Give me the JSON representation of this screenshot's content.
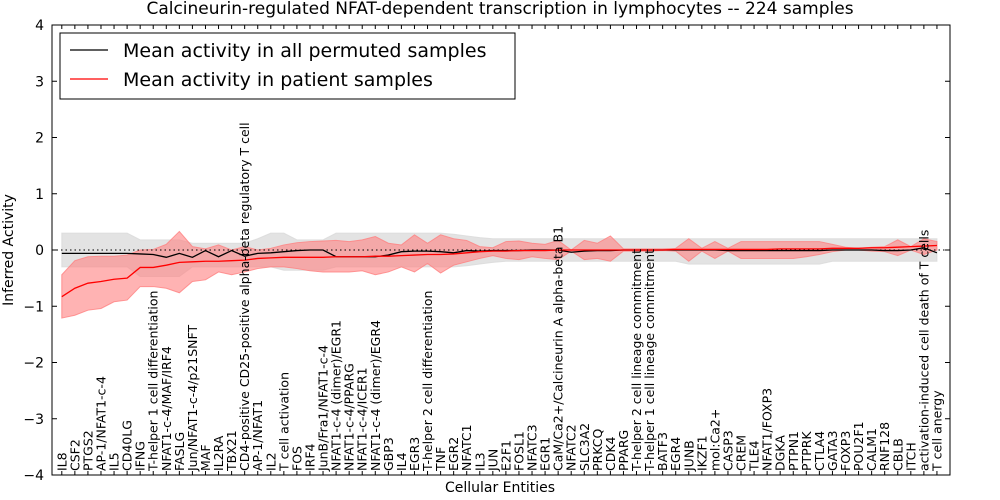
{
  "chart_data": {
    "type": "line",
    "title": "Calcineurin-regulated NFAT-dependent transcription in lymphocytes -- 224 samples",
    "xlabel": "Cellular Entities",
    "ylabel": "Inferred Activity",
    "ylim": [
      -4,
      4
    ],
    "xlim": [
      -0.75,
      68
    ],
    "yticks": [
      -4,
      -3,
      -2,
      -1,
      0,
      1,
      2,
      3,
      4
    ],
    "legend_position": "top-left",
    "categories": [
      "IL8",
      "CSF2",
      "PTGS2",
      "AP-1/NFAT1-c-4",
      "IL5",
      "CD40LG",
      "IFNG",
      "T-helper 1 cell differentiation",
      "NFAT1-c-4/MAF/IRF4",
      "FASLG",
      "Jun/NFAT1-c-4/p21SNFT",
      "MAF",
      "IL2RA",
      "TBX21",
      "CD4-positive CD25-positive alpha-beta regulatory T cell",
      "AP-1/NFAT1",
      "IL2",
      "T cell activation",
      "FOS",
      "IRF4",
      "JunB/Fra1/NFAT1-c-4",
      "NFAT1-c-4 (dimer)/EGR1",
      "NFAT1-c-4/PPARG",
      "NFAT1-c-4/ICER1",
      "NFAT1-c-4 (dimer)/EGR4",
      "GBP3",
      "IL4",
      "EGR3",
      "T-helper 2 cell differentiation",
      "TNF",
      "EGR2",
      "NFATC1",
      "IL3",
      "JUN",
      "E2F1",
      "FOSL1",
      "NFATC3",
      "EGR1",
      "CaM/Ca2+/Calcineurin A alpha-beta B1",
      "NFATC2",
      "SLC3A2",
      "PRKCQ",
      "CDK4",
      "PPARG",
      "T-helper 2 cell lineage commitment",
      "T-helper 1 cell lineage commitment",
      "BATF3",
      "EGR4",
      "JUNB",
      "IKZF1",
      "mol:Ca2+",
      "CASP3",
      "CREM",
      "TLE4",
      "NFAT1/FOXP3",
      "DGKA",
      "PTPN1",
      "PTPRK",
      "CTLA4",
      "GATA3",
      "FOXP3",
      "POU2F1",
      "CALM1",
      "RNF128",
      "CBLB",
      "ITCH",
      "activation-induced cell death of T cells",
      "T cell anergy"
    ],
    "series": [
      {
        "name": "Mean activity in all permuted samples",
        "color": "#000000",
        "band_color": "#d9d9d9",
        "values": [
          -0.06,
          -0.06,
          -0.06,
          -0.06,
          -0.06,
          -0.06,
          -0.07,
          -0.08,
          -0.13,
          -0.06,
          -0.13,
          -0.01,
          -0.12,
          -0.01,
          -0.11,
          -0.06,
          -0.05,
          -0.03,
          -0.01,
          0,
          0,
          -0.12,
          -0.12,
          -0.12,
          -0.12,
          -0.09,
          -0.03,
          -0.02,
          -0.02,
          -0.03,
          -0.05,
          -0.01,
          -0.02,
          -0.01,
          -0.01,
          -0.01,
          0,
          0,
          0,
          -0.04,
          -0.02,
          -0.01,
          -0.01,
          0,
          0,
          0,
          0,
          0,
          0,
          0,
          0,
          -0.01,
          -0.01,
          -0.01,
          -0.01,
          -0.01,
          -0.01,
          -0.01,
          -0.01,
          0,
          0,
          0,
          0,
          -0.01,
          -0.01,
          0,
          0.04,
          -0.05
        ],
        "upper": [
          0.3,
          0.3,
          0.3,
          0.3,
          0.3,
          0.3,
          0.18,
          0.18,
          0.18,
          0.18,
          0.12,
          0.12,
          0.12,
          0.12,
          0.12,
          0.2,
          0.3,
          0.3,
          0.18,
          0.18,
          0.18,
          0.3,
          0.3,
          0.3,
          0.3,
          0.3,
          0.3,
          0.3,
          0.3,
          0.3,
          0.28,
          0.25,
          0.22,
          0.2,
          0.2,
          0.2,
          0.2,
          0.2,
          0.2,
          0.2,
          0.2,
          0.2,
          0.2,
          0.2,
          0.2,
          0.2,
          0.2,
          0.2,
          0.2,
          0.2,
          0.2,
          0.2,
          0.2,
          0.2,
          0.2,
          0.2,
          0.2,
          0.2,
          0.2,
          0.2,
          0.2,
          0.2,
          0.2,
          0.2,
          0.2,
          0.2,
          0.2,
          0.2
        ],
        "lower": [
          -0.3,
          -0.3,
          -0.3,
          -0.3,
          -0.3,
          -0.3,
          -0.47,
          -0.47,
          -0.47,
          -0.47,
          -0.3,
          -0.3,
          -0.3,
          -0.3,
          -0.3,
          -0.3,
          -0.3,
          -0.36,
          -0.36,
          -0.36,
          -0.36,
          -0.3,
          -0.3,
          -0.3,
          -0.3,
          -0.3,
          -0.3,
          -0.3,
          -0.3,
          -0.3,
          -0.3,
          -0.28,
          -0.25,
          -0.22,
          -0.2,
          -0.2,
          -0.2,
          -0.2,
          -0.2,
          -0.2,
          -0.2,
          -0.2,
          -0.2,
          -0.2,
          -0.2,
          -0.2,
          -0.2,
          -0.2,
          -0.25,
          -0.25,
          -0.25,
          -0.25,
          -0.25,
          -0.25,
          -0.25,
          -0.25,
          -0.25,
          -0.25,
          -0.25,
          -0.2,
          -0.2,
          -0.2,
          -0.2,
          -0.2,
          -0.2,
          -0.2,
          -0.2,
          -0.2
        ]
      },
      {
        "name": "Mean activity in patient samples",
        "color": "#ff0000",
        "band_color": "#ff8080",
        "values": [
          -0.83,
          -0.68,
          -0.59,
          -0.56,
          -0.52,
          -0.5,
          -0.31,
          -0.31,
          -0.27,
          -0.22,
          -0.21,
          -0.2,
          -0.2,
          -0.19,
          -0.18,
          -0.15,
          -0.14,
          -0.13,
          -0.13,
          -0.13,
          -0.13,
          -0.12,
          -0.12,
          -0.12,
          -0.11,
          -0.11,
          -0.1,
          -0.09,
          -0.08,
          -0.08,
          -0.07,
          -0.05,
          -0.03,
          -0.02,
          -0.02,
          -0.01,
          -0.01,
          -0.01,
          0,
          0,
          0,
          0,
          0,
          0,
          0,
          0,
          0,
          0.01,
          0.01,
          0.01,
          0.01,
          0.01,
          0.01,
          0.01,
          0.01,
          0.02,
          0.02,
          0.02,
          0.02,
          0.03,
          0.03,
          0.03,
          0.04,
          0.04,
          0.05,
          0.06,
          0.07,
          0.08
        ],
        "upper": [
          -0.44,
          -0.19,
          -0.12,
          -0.11,
          -0.11,
          -0.09,
          0,
          0.01,
          0.1,
          0.33,
          0.06,
          0.02,
          0.09,
          0,
          0.06,
          0,
          0.03,
          0.09,
          0.13,
          0.15,
          0.16,
          0.17,
          0.15,
          0.18,
          0.24,
          0.12,
          0.09,
          0.27,
          0.12,
          0.27,
          0.2,
          0.17,
          0.06,
          0.04,
          0.15,
          0.16,
          0.12,
          0.1,
          0.17,
          0,
          0.17,
          0.12,
          0.25,
          0.02,
          0.02,
          0.02,
          0.02,
          0.03,
          0.2,
          0.03,
          0.15,
          0.03,
          0.15,
          0.15,
          0.15,
          0.15,
          0.15,
          0.15,
          0.15,
          0.1,
          0.05,
          0.03,
          0.05,
          0.06,
          0.18,
          0.06,
          0.2,
          0.15
        ],
        "lower": [
          -1.21,
          -1.16,
          -1.07,
          -1.04,
          -0.92,
          -0.89,
          -0.65,
          -0.65,
          -0.68,
          -0.76,
          -0.56,
          -0.53,
          -0.39,
          -0.44,
          -0.39,
          -0.33,
          -0.3,
          -0.3,
          -0.33,
          -0.37,
          -0.39,
          -0.39,
          -0.39,
          -0.37,
          -0.44,
          -0.39,
          -0.3,
          -0.39,
          -0.24,
          -0.41,
          -0.27,
          -0.21,
          -0.15,
          -0.1,
          -0.15,
          -0.17,
          -0.12,
          -0.15,
          -0.17,
          -0.02,
          -0.17,
          -0.15,
          -0.2,
          -0.02,
          -0.02,
          -0.02,
          -0.01,
          -0.02,
          -0.2,
          -0.02,
          -0.15,
          -0.02,
          -0.15,
          -0.15,
          -0.15,
          -0.15,
          -0.15,
          -0.12,
          -0.08,
          -0.03,
          0,
          0,
          -0.02,
          -0.03,
          -0.1,
          0,
          -0.08,
          0
        ]
      }
    ]
  }
}
